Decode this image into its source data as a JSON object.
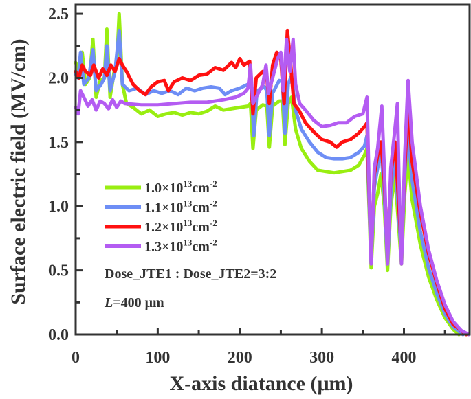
{
  "chart_data": {
    "type": "line",
    "xlabel": "X-axis diatance (μm)",
    "ylabel": "Surface electric field (MV/cm)",
    "xlim": [
      0,
      480
    ],
    "ylim": [
      0,
      2.57
    ],
    "xticks": [
      "0",
      "100",
      "200",
      "300",
      "400"
    ],
    "xtick_values": [
      0,
      100,
      200,
      300,
      400
    ],
    "yticks": [
      "0.0",
      "0.5",
      "1.0",
      "1.5",
      "2.0",
      "2.5"
    ],
    "ytick_values": [
      0,
      0.5,
      1.0,
      1.5,
      2.0,
      2.5
    ],
    "grid": false,
    "legend_placement": "center-left",
    "annotations": [
      "Dose_JTE1 : Dose_JTE2=3:2",
      "=400 μm"
    ],
    "annotation_italic_prefix": "L",
    "series": [
      {
        "name": "1.0×10¹³cm⁻²",
        "label_base": "1.0×10",
        "label_exp": "13",
        "label_unit": "cm",
        "label_unit_exp": "-2",
        "color": "#99ee11",
        "points": [
          [
            0,
            2.12
          ],
          [
            4,
            2.05
          ],
          [
            8,
            2.2
          ],
          [
            12,
            1.95
          ],
          [
            17,
            2.0
          ],
          [
            21,
            2.3
          ],
          [
            25,
            1.85
          ],
          [
            30,
            1.98
          ],
          [
            35,
            2.0
          ],
          [
            38,
            2.38
          ],
          [
            42,
            1.85
          ],
          [
            47,
            2.05
          ],
          [
            50,
            2.1
          ],
          [
            53,
            2.5
          ],
          [
            57,
            1.95
          ],
          [
            62,
            1.8
          ],
          [
            70,
            1.77
          ],
          [
            80,
            1.72
          ],
          [
            90,
            1.75
          ],
          [
            100,
            1.7
          ],
          [
            110,
            1.72
          ],
          [
            120,
            1.73
          ],
          [
            130,
            1.71
          ],
          [
            140,
            1.73
          ],
          [
            150,
            1.72
          ],
          [
            160,
            1.74
          ],
          [
            170,
            1.78
          ],
          [
            180,
            1.75
          ],
          [
            190,
            1.76
          ],
          [
            200,
            1.77
          ],
          [
            210,
            1.78
          ],
          [
            213,
            1.8
          ],
          [
            216,
            1.45
          ],
          [
            220,
            1.75
          ],
          [
            228,
            1.79
          ],
          [
            233,
            1.78
          ],
          [
            236,
            1.46
          ],
          [
            240,
            1.78
          ],
          [
            248,
            1.82
          ],
          [
            252,
            1.82
          ],
          [
            255,
            1.48
          ],
          [
            259,
            1.8
          ],
          [
            263,
            1.85
          ],
          [
            268,
            1.6
          ],
          [
            275,
            1.45
          ],
          [
            285,
            1.35
          ],
          [
            295,
            1.28
          ],
          [
            305,
            1.27
          ],
          [
            315,
            1.26
          ],
          [
            325,
            1.27
          ],
          [
            335,
            1.28
          ],
          [
            345,
            1.32
          ],
          [
            352,
            1.4
          ],
          [
            355,
            1.45
          ],
          [
            358,
            0.9
          ],
          [
            360,
            0.52
          ],
          [
            364,
            1.0
          ],
          [
            368,
            1.1
          ],
          [
            372,
            1.25
          ],
          [
            376,
            1.0
          ],
          [
            380,
            0.5
          ],
          [
            384,
            1.0
          ],
          [
            389,
            1.25
          ],
          [
            393,
            0.9
          ],
          [
            397,
            0.55
          ],
          [
            401,
            1.1
          ],
          [
            405,
            1.4
          ],
          [
            410,
            1.05
          ],
          [
            420,
            0.7
          ],
          [
            430,
            0.45
          ],
          [
            440,
            0.27
          ],
          [
            450,
            0.13
          ],
          [
            460,
            0.04
          ],
          [
            467,
            0
          ]
        ]
      },
      {
        "name": "1.1×10¹³cm⁻²",
        "label_base": "1.1×10",
        "label_exp": "13",
        "label_unit": "cm",
        "label_unit_exp": "-2",
        "color": "#6e8ef5",
        "points": [
          [
            0,
            2.03
          ],
          [
            3,
            2.0
          ],
          [
            6,
            2.2
          ],
          [
            10,
            1.95
          ],
          [
            16,
            2.0
          ],
          [
            21,
            2.22
          ],
          [
            25,
            1.9
          ],
          [
            31,
            1.95
          ],
          [
            35,
            2.0
          ],
          [
            38,
            2.25
          ],
          [
            42,
            1.9
          ],
          [
            48,
            2.05
          ],
          [
            53,
            2.37
          ],
          [
            57,
            1.95
          ],
          [
            65,
            1.9
          ],
          [
            75,
            1.92
          ],
          [
            85,
            1.87
          ],
          [
            95,
            1.9
          ],
          [
            105,
            1.88
          ],
          [
            115,
            1.9
          ],
          [
            125,
            1.87
          ],
          [
            135,
            1.92
          ],
          [
            145,
            1.9
          ],
          [
            155,
            1.92
          ],
          [
            165,
            1.93
          ],
          [
            175,
            1.92
          ],
          [
            182,
            1.87
          ],
          [
            190,
            1.9
          ],
          [
            200,
            1.92
          ],
          [
            210,
            1.95
          ],
          [
            214,
            1.98
          ],
          [
            217,
            1.55
          ],
          [
            221,
            1.9
          ],
          [
            230,
            1.93
          ],
          [
            233,
            1.9
          ],
          [
            236,
            1.55
          ],
          [
            240,
            1.88
          ],
          [
            248,
            1.98
          ],
          [
            252,
            1.97
          ],
          [
            255,
            1.57
          ],
          [
            259,
            1.95
          ],
          [
            263,
            2.02
          ],
          [
            268,
            1.75
          ],
          [
            275,
            1.6
          ],
          [
            285,
            1.5
          ],
          [
            295,
            1.42
          ],
          [
            305,
            1.38
          ],
          [
            315,
            1.37
          ],
          [
            325,
            1.37
          ],
          [
            335,
            1.38
          ],
          [
            345,
            1.42
          ],
          [
            352,
            1.47
          ],
          [
            355,
            1.55
          ],
          [
            358,
            0.95
          ],
          [
            360,
            0.57
          ],
          [
            364,
            1.15
          ],
          [
            368,
            1.3
          ],
          [
            372,
            1.45
          ],
          [
            376,
            1.1
          ],
          [
            380,
            0.55
          ],
          [
            384,
            1.1
          ],
          [
            389,
            1.4
          ],
          [
            393,
            1.0
          ],
          [
            397,
            0.6
          ],
          [
            401,
            1.25
          ],
          [
            405,
            1.6
          ],
          [
            410,
            1.2
          ],
          [
            420,
            0.8
          ],
          [
            430,
            0.52
          ],
          [
            440,
            0.32
          ],
          [
            450,
            0.16
          ],
          [
            460,
            0.06
          ],
          [
            472,
            0
          ]
        ]
      },
      {
        "name": "1.2×10¹³cm⁻²",
        "label_base": "1.2×10",
        "label_exp": "13",
        "label_unit": "cm",
        "label_unit_exp": "-2",
        "color": "#ff1111",
        "points": [
          [
            0,
            2.05
          ],
          [
            4,
            2.0
          ],
          [
            8,
            2.1
          ],
          [
            12,
            2.05
          ],
          [
            18,
            2.02
          ],
          [
            22,
            2.1
          ],
          [
            28,
            2.0
          ],
          [
            33,
            2.07
          ],
          [
            38,
            2.02
          ],
          [
            43,
            2.1
          ],
          [
            48,
            2.05
          ],
          [
            53,
            2.15
          ],
          [
            57,
            2.1
          ],
          [
            62,
            2.05
          ],
          [
            70,
            1.95
          ],
          [
            78,
            1.9
          ],
          [
            85,
            1.87
          ],
          [
            92,
            1.93
          ],
          [
            100,
            1.97
          ],
          [
            108,
            1.98
          ],
          [
            113,
            1.9
          ],
          [
            120,
            1.97
          ],
          [
            130,
            2.0
          ],
          [
            140,
            1.98
          ],
          [
            150,
            2.02
          ],
          [
            160,
            2.03
          ],
          [
            170,
            2.08
          ],
          [
            180,
            2.06
          ],
          [
            190,
            2.12
          ],
          [
            195,
            2.08
          ],
          [
            200,
            2.15
          ],
          [
            205,
            2.1
          ],
          [
            212,
            2.13
          ],
          [
            216,
            1.72
          ],
          [
            220,
            2.0
          ],
          [
            228,
            2.05
          ],
          [
            233,
            2.0
          ],
          [
            236,
            1.8
          ],
          [
            240,
            2.1
          ],
          [
            245,
            2.2
          ],
          [
            250,
            2.15
          ],
          [
            254,
            1.8
          ],
          [
            258,
            2.37
          ],
          [
            262,
            2.1
          ],
          [
            266,
            1.8
          ],
          [
            272,
            1.75
          ],
          [
            280,
            1.65
          ],
          [
            290,
            1.58
          ],
          [
            300,
            1.52
          ],
          [
            310,
            1.5
          ],
          [
            318,
            1.46
          ],
          [
            325,
            1.5
          ],
          [
            335,
            1.52
          ],
          [
            345,
            1.57
          ],
          [
            352,
            1.62
          ],
          [
            355,
            1.65
          ],
          [
            358,
            1.0
          ],
          [
            360,
            0.62
          ],
          [
            364,
            1.25
          ],
          [
            368,
            1.4
          ],
          [
            372,
            1.5
          ],
          [
            376,
            1.2
          ],
          [
            380,
            0.62
          ],
          [
            384,
            1.25
          ],
          [
            389,
            1.5
          ],
          [
            393,
            1.1
          ],
          [
            397,
            0.65
          ],
          [
            401,
            1.3
          ],
          [
            405,
            1.8
          ],
          [
            410,
            1.35
          ],
          [
            420,
            0.95
          ],
          [
            430,
            0.63
          ],
          [
            440,
            0.4
          ],
          [
            450,
            0.2
          ],
          [
            460,
            0.08
          ],
          [
            476,
            0
          ]
        ]
      },
      {
        "name": "1.3×10¹³cm⁻²",
        "label_base": "1.3×10",
        "label_exp": "13",
        "label_unit": "cm",
        "label_unit_exp": "-2",
        "color": "#b45cf2",
        "points": [
          [
            0,
            1.77
          ],
          [
            3,
            1.72
          ],
          [
            6,
            1.9
          ],
          [
            10,
            1.85
          ],
          [
            15,
            1.78
          ],
          [
            20,
            1.83
          ],
          [
            25,
            1.75
          ],
          [
            30,
            1.82
          ],
          [
            35,
            1.8
          ],
          [
            40,
            1.76
          ],
          [
            45,
            1.83
          ],
          [
            50,
            1.77
          ],
          [
            55,
            1.82
          ],
          [
            60,
            1.8
          ],
          [
            80,
            1.79
          ],
          [
            100,
            1.79
          ],
          [
            120,
            1.8
          ],
          [
            140,
            1.81
          ],
          [
            160,
            1.81
          ],
          [
            180,
            1.83
          ],
          [
            195,
            1.85
          ],
          [
            205,
            1.88
          ],
          [
            210,
            1.92
          ],
          [
            213,
            2.1
          ],
          [
            216,
            1.8
          ],
          [
            220,
            1.85
          ],
          [
            228,
            1.95
          ],
          [
            232,
            2.1
          ],
          [
            235,
            1.88
          ],
          [
            240,
            2.0
          ],
          [
            246,
            2.15
          ],
          [
            250,
            2.2
          ],
          [
            253,
            1.9
          ],
          [
            257,
            2.3
          ],
          [
            261,
            2.05
          ],
          [
            265,
            2.3
          ],
          [
            268,
            1.95
          ],
          [
            273,
            1.8
          ],
          [
            280,
            1.75
          ],
          [
            290,
            1.67
          ],
          [
            300,
            1.62
          ],
          [
            310,
            1.63
          ],
          [
            320,
            1.65
          ],
          [
            330,
            1.65
          ],
          [
            340,
            1.7
          ],
          [
            350,
            1.72
          ],
          [
            355,
            1.85
          ],
          [
            358,
            1.0
          ],
          [
            360,
            0.55
          ],
          [
            364,
            1.3
          ],
          [
            368,
            1.45
          ],
          [
            373,
            1.78
          ],
          [
            376,
            1.3
          ],
          [
            380,
            0.55
          ],
          [
            384,
            1.3
          ],
          [
            389,
            1.6
          ],
          [
            392,
            1.8
          ],
          [
            394,
            1.2
          ],
          [
            397,
            0.55
          ],
          [
            401,
            1.4
          ],
          [
            405,
            1.98
          ],
          [
            410,
            1.5
          ],
          [
            420,
            1.0
          ],
          [
            430,
            0.66
          ],
          [
            440,
            0.42
          ],
          [
            450,
            0.23
          ],
          [
            460,
            0.1
          ],
          [
            470,
            0.03
          ],
          [
            479,
            0
          ]
        ]
      }
    ]
  }
}
